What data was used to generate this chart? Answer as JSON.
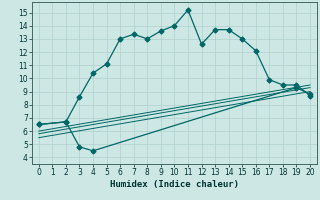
{
  "xlabel": "Humidex (Indice chaleur)",
  "bg_color": "#cde8e4",
  "grid_color": "#b0cfcc",
  "line_color": "#006666",
  "xlim": [
    -0.5,
    20.5
  ],
  "ylim": [
    3.5,
    15.8
  ],
  "xticks": [
    0,
    1,
    2,
    3,
    4,
    5,
    6,
    7,
    8,
    9,
    10,
    11,
    12,
    13,
    14,
    15,
    16,
    17,
    18,
    19,
    20
  ],
  "yticks": [
    4,
    5,
    6,
    7,
    8,
    9,
    10,
    11,
    12,
    13,
    14,
    15
  ],
  "curve1_x": [
    0,
    2,
    3,
    4,
    5,
    6,
    7,
    8,
    9,
    10,
    11,
    12,
    13,
    14,
    15,
    16,
    17,
    18,
    19,
    20
  ],
  "curve1_y": [
    6.5,
    6.7,
    8.6,
    10.4,
    11.1,
    13.0,
    13.35,
    13.0,
    13.6,
    14.0,
    15.2,
    12.6,
    13.7,
    13.7,
    13.0,
    12.1,
    9.9,
    9.5,
    9.5,
    8.7
  ],
  "curve2_x": [
    0,
    2,
    3,
    4,
    19,
    20
  ],
  "curve2_y": [
    6.5,
    6.7,
    4.8,
    4.5,
    9.3,
    8.8
  ],
  "line3_x": [
    0,
    20
  ],
  "line3_y": [
    5.5,
    9.0
  ],
  "line4_x": [
    0,
    20
  ],
  "line4_y": [
    5.8,
    9.3
  ],
  "line5_x": [
    0,
    20
  ],
  "line5_y": [
    6.0,
    9.5
  ],
  "marker_style": "D",
  "marker_size": 2.5,
  "lw": 0.9
}
